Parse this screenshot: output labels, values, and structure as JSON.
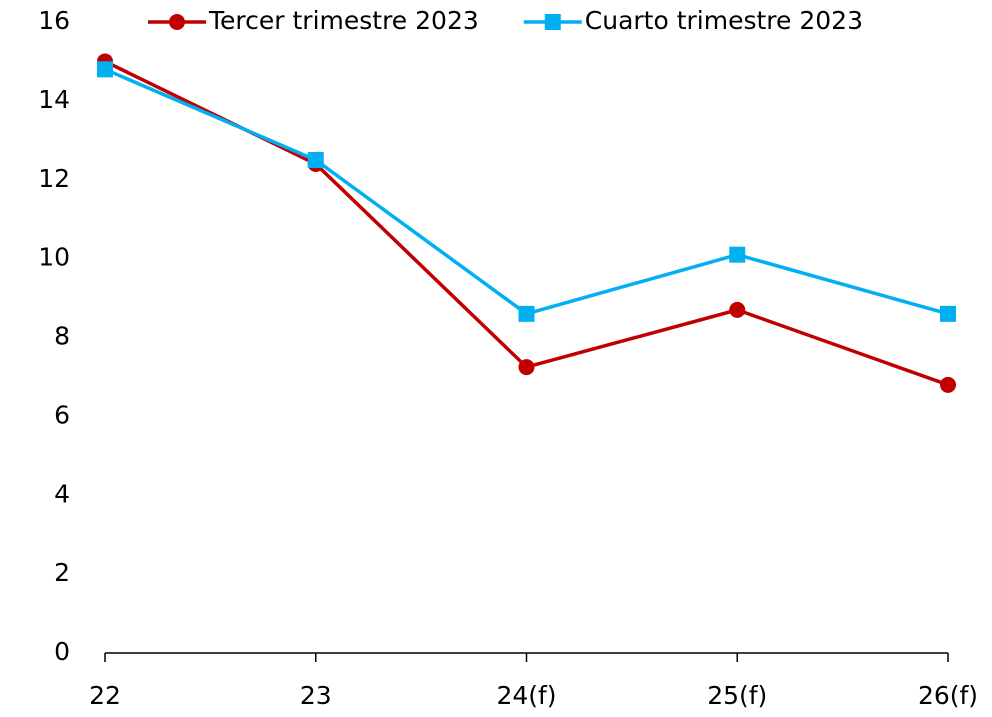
{
  "chart_data": {
    "type": "line",
    "categories": [
      "22",
      "23",
      "24(f)",
      "25(f)",
      "26(f)"
    ],
    "series": [
      {
        "name": "Tercer trimestre 2023",
        "color": "#c00000",
        "marker": "circle",
        "values": [
          15.0,
          12.4,
          7.25,
          8.7,
          6.8
        ]
      },
      {
        "name": "Cuarto trimestre 2023",
        "color": "#00b0f0",
        "marker": "square",
        "values": [
          14.8,
          12.5,
          8.6,
          10.1,
          8.6
        ]
      }
    ],
    "ylim": [
      0,
      16
    ],
    "yticks": [
      0,
      2,
      4,
      6,
      8,
      10,
      12,
      14,
      16
    ],
    "grid": false,
    "legend": "top"
  }
}
